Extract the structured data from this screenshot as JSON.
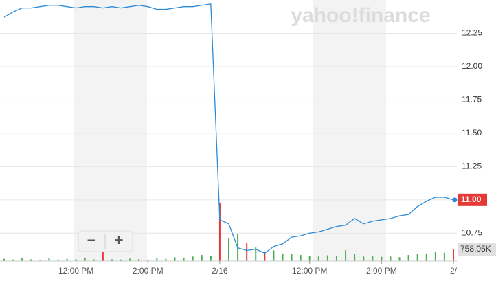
{
  "chart_data": {
    "type": "line",
    "watermark": "yahoo!finance",
    "zoom_out": "−",
    "zoom_in": "+",
    "x": [
      null,
      null,
      null,
      null,
      null,
      null,
      null,
      null,
      "12:00 PM",
      null,
      null,
      null,
      null,
      null,
      null,
      null,
      "2:00 PM",
      null,
      null,
      null,
      null,
      null,
      null,
      null,
      "2/16",
      null,
      null,
      null,
      null,
      null,
      null,
      null,
      null,
      null,
      "12:00 PM",
      null,
      null,
      null,
      null,
      null,
      null,
      null,
      "2:00 PM",
      null,
      null,
      null,
      null,
      null,
      null,
      null,
      "2/"
    ],
    "series": [
      {
        "name": "Price",
        "color": "#2b8ad8",
        "values": [
          12.37,
          12.41,
          12.44,
          12.44,
          12.45,
          12.46,
          12.46,
          12.45,
          12.44,
          12.45,
          12.45,
          12.44,
          12.45,
          12.44,
          12.45,
          12.46,
          12.45,
          12.43,
          12.43,
          12.44,
          12.45,
          12.45,
          12.46,
          12.47,
          10.85,
          10.82,
          10.64,
          10.62,
          10.63,
          10.6,
          10.65,
          10.67,
          10.72,
          10.73,
          10.75,
          10.76,
          10.78,
          10.8,
          10.81,
          10.86,
          10.82,
          10.84,
          10.85,
          10.86,
          10.88,
          10.89,
          10.95,
          10.99,
          11.02,
          11.02,
          11.0
        ],
        "value_labels": [
          null,
          null,
          null,
          null,
          null,
          null,
          null,
          null,
          null,
          null,
          null,
          null,
          null,
          null,
          null,
          null,
          null,
          null,
          null,
          null,
          null,
          null,
          null,
          null,
          null,
          null,
          null,
          null,
          null,
          null,
          null,
          null,
          null,
          null,
          null,
          null,
          null,
          null,
          null,
          null,
          null,
          null,
          null,
          null,
          null,
          null,
          null,
          null,
          null,
          null,
          "11.00"
        ]
      }
    ],
    "volume": {
      "values": [
        150000,
        100000,
        200000,
        120000,
        90000,
        180000,
        100000,
        150000,
        130000,
        200000,
        110000,
        900000,
        120000,
        100000,
        160000,
        140000,
        90000,
        200000,
        150000,
        250000,
        180000,
        300000,
        400000,
        350000,
        3800000,
        1500000,
        1800000,
        1200000,
        900000,
        600000,
        700000,
        500000,
        450000,
        400000,
        350000,
        300000,
        380000,
        320000,
        700000,
        450000,
        300000,
        350000,
        280000,
        300000,
        260000,
        400000,
        450000,
        500000,
        600000,
        550000,
        758050
      ],
      "value_labels": [
        null,
        null,
        null,
        null,
        null,
        null,
        null,
        null,
        null,
        null,
        null,
        null,
        null,
        null,
        null,
        null,
        null,
        null,
        null,
        null,
        null,
        null,
        null,
        null,
        null,
        null,
        null,
        null,
        null,
        null,
        null,
        null,
        null,
        null,
        null,
        null,
        null,
        null,
        null,
        null,
        null,
        null,
        null,
        null,
        null,
        null,
        null,
        null,
        null,
        null,
        "758.05K"
      ],
      "colors": [
        "#4caf50",
        "#4caf50",
        "#4caf50",
        "#4caf50",
        "#4caf50",
        "#4caf50",
        "#4caf50",
        "#4caf50",
        "#4caf50",
        "#4caf50",
        "#4caf50",
        "#e53935",
        "#4caf50",
        "#4caf50",
        "#4caf50",
        "#4caf50",
        "#4caf50",
        "#4caf50",
        "#4caf50",
        "#4caf50",
        "#4caf50",
        "#4caf50",
        "#4caf50",
        "#4caf50",
        "#e53935",
        "#4caf50",
        "#4caf50",
        "#e53935",
        "#4caf50",
        "#e53935",
        "#4caf50",
        "#4caf50",
        "#4caf50",
        "#4caf50",
        "#4caf50",
        "#4caf50",
        "#4caf50",
        "#4caf50",
        "#4caf50",
        "#4caf50",
        "#4caf50",
        "#4caf50",
        "#4caf50",
        "#4caf50",
        "#4caf50",
        "#4caf50",
        "#4caf50",
        "#4caf50",
        "#4caf50",
        "#4caf50",
        "#e53935"
      ],
      "ylim": [
        0,
        17000000
      ]
    },
    "ylim": [
      10.54,
      12.5
    ],
    "yticks": [
      10.75,
      {
        "value": 11,
        "label": "11.00"
      },
      11.25,
      {
        "value": 11.5,
        "label": "11.50"
      },
      11.75,
      {
        "value": 12,
        "label": "12.00"
      },
      12.25
    ],
    "grid": true,
    "last_color": "#e53935"
  }
}
